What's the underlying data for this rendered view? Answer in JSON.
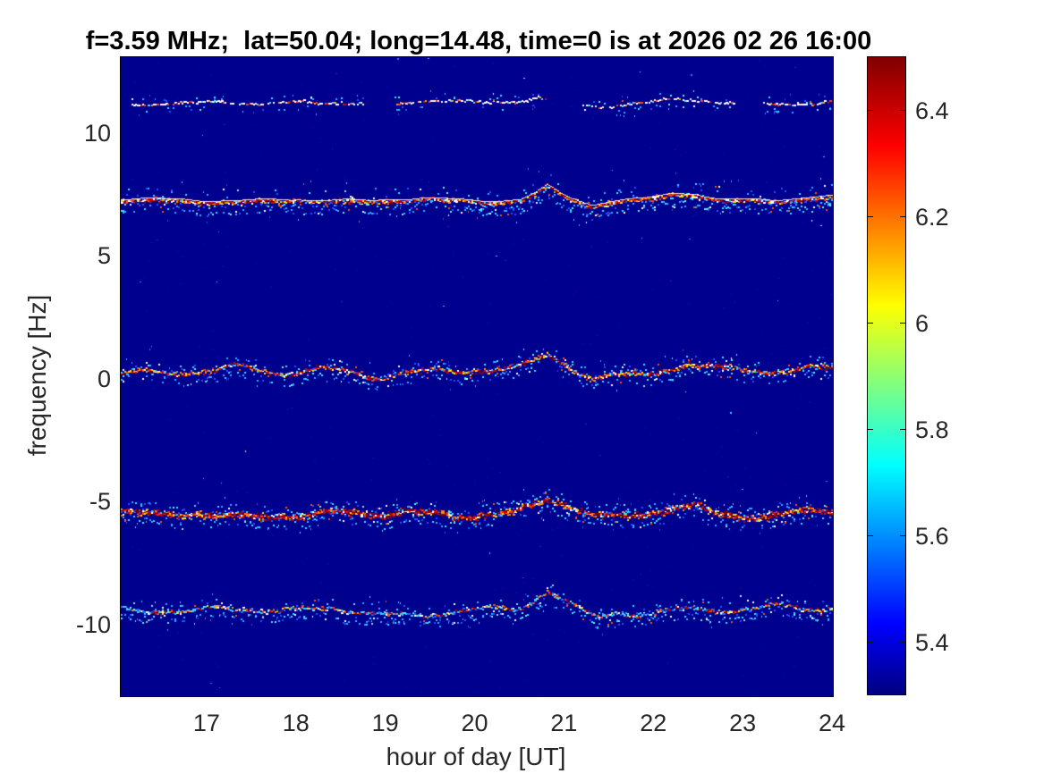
{
  "chart_data": {
    "type": "heatmap",
    "title": "f=3.59 MHz;  lat=50.04; long=14.48, time=0 is at 2026 02 26 16:00",
    "xlabel": "hour of day [UT]",
    "ylabel": "frequency [Hz]",
    "xlim": [
      16.03,
      24
    ],
    "ylim": [
      -12.91,
      13.09
    ],
    "xticks": [
      17,
      18,
      19,
      20,
      21,
      22,
      23,
      24
    ],
    "yticks": [
      10,
      5,
      0,
      -5,
      -10
    ],
    "grid": false,
    "background_color": "#00008f",
    "colorbar": {
      "range": [
        5.3,
        6.5
      ],
      "ticks": [
        5.4,
        5.6,
        5.8,
        6,
        6.2,
        6.4
      ],
      "colormap": "jet",
      "stops": [
        [
          "#000080",
          0
        ],
        [
          "#0000ff",
          0.11
        ],
        [
          "#00ffff",
          0.36
        ],
        [
          "#ffff00",
          0.61
        ],
        [
          "#ff0000",
          0.86
        ],
        [
          "#800000",
          1
        ]
      ]
    },
    "render": {
      "bg_speckle_colors": [
        [
          "#0008b4",
          3
        ],
        [
          "#0011c8",
          2
        ],
        [
          "#030fa6",
          4
        ],
        [
          "#1a2ad0",
          0.8
        ]
      ],
      "bg_bright_colors": [
        [
          "#2e7bff",
          2
        ],
        [
          "#49c7ff",
          2
        ],
        [
          "#bfe9ff",
          1
        ],
        [
          "#ff6633",
          0.3
        ]
      ],
      "fringe_colors": [
        [
          "#2255ff",
          2
        ],
        [
          "#33aaff",
          2.5
        ],
        [
          "#33e0ff",
          2
        ],
        [
          "#77eedd",
          1
        ],
        [
          "#ffffff",
          0.6
        ],
        [
          "#ff5500",
          0.4
        ]
      ]
    },
    "traces": [
      {
        "name": "doppler-trace-1",
        "center_frequency_hz": 11.2,
        "points": [
          [
            16.03,
            11.25
          ],
          [
            16.6,
            11.15
          ],
          [
            17.1,
            11.3
          ],
          [
            17.6,
            11.1
          ],
          [
            18.1,
            11.3
          ],
          [
            18.7,
            11.2
          ],
          [
            19.2,
            11.25
          ],
          [
            19.5,
            11.35
          ],
          [
            19.7,
            11.25
          ],
          [
            20.0,
            11.2
          ],
          [
            20.5,
            11.3
          ],
          [
            20.7,
            11.45
          ],
          [
            20.9,
            11.2
          ],
          [
            21.4,
            11.1
          ],
          [
            21.9,
            11.25
          ],
          [
            22.3,
            11.35
          ],
          [
            22.9,
            11.2
          ],
          [
            23.4,
            11.15
          ],
          [
            24,
            11.3
          ]
        ],
        "render": {
          "core": 0.9,
          "spread": 1.3,
          "fringe": 0.15,
          "fringe_dist": 5,
          "below_bias": 0.5,
          "stray_dist": 6,
          "wiggle": 0.09,
          "phase": 0.7,
          "gaps": true,
          "hairline": false,
          "offset": 0,
          "core_colors": [
            [
              "#ffffff",
              5
            ],
            [
              "#ffeec0",
              2
            ],
            [
              "#ff4422",
              1.3
            ],
            [
              "#cc1100",
              0.7
            ],
            [
              "#55ddff",
              1.2
            ],
            [
              "#ffaa00",
              0.8
            ]
          ]
        }
      },
      {
        "name": "doppler-trace-2",
        "center_frequency_hz": 7.25,
        "points": [
          [
            16.03,
            7.3
          ],
          [
            17,
            7.25
          ],
          [
            18,
            7.3
          ],
          [
            18.8,
            7.2
          ],
          [
            19.4,
            7.35
          ],
          [
            20.0,
            7.25
          ],
          [
            20.5,
            7.3
          ],
          [
            20.65,
            7.55
          ],
          [
            20.8,
            7.85
          ],
          [
            20.95,
            7.5
          ],
          [
            21.1,
            7.3
          ],
          [
            21.3,
            7.05
          ],
          [
            21.5,
            7.2
          ],
          [
            21.9,
            7.3
          ],
          [
            22.2,
            7.55
          ],
          [
            22.45,
            7.55
          ],
          [
            22.7,
            7.3
          ],
          [
            23.3,
            7.3
          ],
          [
            23.7,
            7.35
          ],
          [
            24,
            7.4
          ]
        ],
        "render": {
          "core": 2.4,
          "spread": 2.6,
          "fringe": 0.5,
          "fringe_dist": 12,
          "below_bias": 0.78,
          "stray_dist": 18,
          "wiggle": 0.08,
          "phase": 1.9,
          "gaps": false,
          "hairline": true,
          "offset": 1.5,
          "core_colors": [
            [
              "#8b0000",
              2
            ],
            [
              "#d40000",
              2.8
            ],
            [
              "#ff4400",
              2
            ],
            [
              "#ff9900",
              1.3
            ],
            [
              "#ffe000",
              1.2
            ],
            [
              "#ffffff",
              1.8
            ],
            [
              "#33ccff",
              1
            ],
            [
              "#2255ff",
              0.8
            ]
          ]
        }
      },
      {
        "name": "doppler-trace-3",
        "center_frequency_hz": 0.3,
        "points": [
          [
            16.03,
            0.3
          ],
          [
            16.7,
            0.25
          ],
          [
            17.3,
            0.45
          ],
          [
            17.8,
            0.15
          ],
          [
            18.3,
            0.45
          ],
          [
            18.8,
            0.1
          ],
          [
            19.3,
            0.35
          ],
          [
            19.8,
            0.25
          ],
          [
            20.3,
            0.4
          ],
          [
            20.5,
            0.4
          ],
          [
            20.8,
            0.95
          ],
          [
            21.05,
            0.45
          ],
          [
            21.3,
            0.05
          ],
          [
            21.5,
            0.15
          ],
          [
            21.9,
            0.2
          ],
          [
            22.35,
            0.6
          ],
          [
            22.8,
            0.35
          ],
          [
            23.3,
            0.25
          ],
          [
            23.7,
            0.4
          ],
          [
            24,
            0.45
          ]
        ],
        "render": {
          "core": 2.0,
          "spread": 3.0,
          "fringe": 0.45,
          "fringe_dist": 9,
          "below_bias": 0.6,
          "stray_dist": 12,
          "wiggle": 0.15,
          "phase": 3.1,
          "gaps": false,
          "hairline": false,
          "offset": 0,
          "core_colors": [
            [
              "#8b0000",
              1.8
            ],
            [
              "#d40000",
              2.5
            ],
            [
              "#ff4400",
              2
            ],
            [
              "#ff9900",
              1.3
            ],
            [
              "#ffe000",
              1.3
            ],
            [
              "#ffffff",
              2
            ],
            [
              "#33ccff",
              1.3
            ],
            [
              "#2255ff",
              0.9
            ]
          ]
        }
      },
      {
        "name": "doppler-trace-4",
        "center_frequency_hz": -5.5,
        "points": [
          [
            16.03,
            -5.55
          ],
          [
            16.6,
            -5.5
          ],
          [
            17.1,
            -5.65
          ],
          [
            17.6,
            -5.45
          ],
          [
            18.1,
            -5.6
          ],
          [
            18.55,
            -5.35
          ],
          [
            19.0,
            -5.6
          ],
          [
            19.45,
            -5.5
          ],
          [
            19.9,
            -5.55
          ],
          [
            20.4,
            -5.45
          ],
          [
            20.6,
            -5.1
          ],
          [
            20.8,
            -4.78
          ],
          [
            21.0,
            -5.1
          ],
          [
            21.2,
            -5.45
          ],
          [
            21.45,
            -5.7
          ],
          [
            21.9,
            -5.55
          ],
          [
            22.15,
            -5.3
          ],
          [
            22.45,
            -5.25
          ],
          [
            22.7,
            -5.5
          ],
          [
            23.2,
            -5.55
          ],
          [
            23.6,
            -5.45
          ],
          [
            24,
            -5.35
          ]
        ],
        "render": {
          "core": 3.3,
          "spread": 3.6,
          "fringe": 0.55,
          "fringe_dist": 10,
          "below_bias": 0.55,
          "stray_dist": 14,
          "wiggle": 0.18,
          "phase": 4.4,
          "gaps": false,
          "hairline": false,
          "offset": 0,
          "core_colors": [
            [
              "#7f0000",
              3
            ],
            [
              "#c60000",
              3.5
            ],
            [
              "#ff3300",
              2.5
            ],
            [
              "#ff8800",
              1.5
            ],
            [
              "#ffd900",
              1.2
            ],
            [
              "#ffffff",
              1.3
            ],
            [
              "#33ccff",
              0.8
            ],
            [
              "#2255ff",
              0.6
            ]
          ]
        }
      },
      {
        "name": "doppler-trace-5",
        "center_frequency_hz": -9.35,
        "points": [
          [
            16.03,
            -9.35
          ],
          [
            16.7,
            -9.45
          ],
          [
            17.2,
            -9.3
          ],
          [
            17.8,
            -9.5
          ],
          [
            18.4,
            -9.35
          ],
          [
            18.9,
            -9.55
          ],
          [
            19.4,
            -9.6
          ],
          [
            19.9,
            -9.4
          ],
          [
            20.5,
            -9.4
          ],
          [
            20.8,
            -8.65
          ],
          [
            21.05,
            -9.2
          ],
          [
            21.35,
            -9.75
          ],
          [
            21.6,
            -9.5
          ],
          [
            21.9,
            -9.5
          ],
          [
            22.3,
            -9.35
          ],
          [
            22.8,
            -9.45
          ],
          [
            23.3,
            -9.3
          ],
          [
            23.75,
            -9.4
          ],
          [
            24,
            -9.3
          ]
        ],
        "render": {
          "core": 1.6,
          "spread": 2.4,
          "fringe": 0.5,
          "fringe_dist": 9,
          "below_bias": 0.72,
          "stray_dist": 12,
          "wiggle": 0.14,
          "phase": 5.6,
          "gaps": false,
          "hairline": false,
          "offset": 0,
          "core_colors": [
            [
              "#b80000",
              1.6
            ],
            [
              "#ff4400",
              1.4
            ],
            [
              "#ff9900",
              0.9
            ],
            [
              "#ffe000",
              0.9
            ],
            [
              "#ffffff",
              1.4
            ],
            [
              "#33ccff",
              2.6
            ],
            [
              "#2266ff",
              1.6
            ],
            [
              "#77eedd",
              1
            ]
          ]
        }
      }
    ]
  }
}
